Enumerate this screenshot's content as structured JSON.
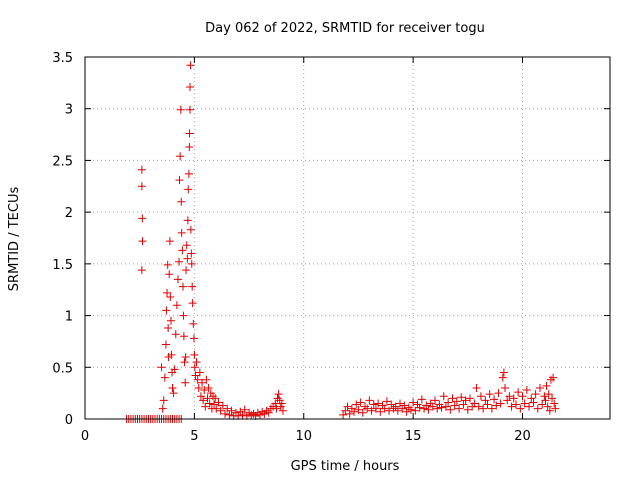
{
  "chart_data": {
    "type": "scatter",
    "title": "Day 062 of 2022, SRMTID for receiver togu",
    "xlabel": "GPS time / hours",
    "ylabel": "SRMTID / TECUs",
    "xlim": [
      0,
      24
    ],
    "ylim": [
      0,
      3.5
    ],
    "xticks": [
      0,
      5,
      10,
      15,
      20
    ],
    "yticks": [
      0,
      0.5,
      1,
      1.5,
      2,
      2.5,
      3,
      3.5
    ],
    "xtick_labels": [
      "0",
      "5",
      "10",
      "15",
      "20"
    ],
    "ytick_labels": [
      "0",
      "0.5",
      "1",
      "1.5",
      "2",
      "2.5",
      "3",
      "3.5"
    ],
    "grid": true,
    "marker": "+",
    "color": "#e00000",
    "series": [
      {
        "name": "togu",
        "points": [
          [
            1.9,
            0
          ],
          [
            2.0,
            0
          ],
          [
            2.1,
            0
          ],
          [
            2.2,
            0
          ],
          [
            2.3,
            0
          ],
          [
            2.4,
            0
          ],
          [
            2.5,
            0
          ],
          [
            2.6,
            0
          ],
          [
            2.7,
            0
          ],
          [
            2.8,
            0
          ],
          [
            2.9,
            0
          ],
          [
            3.0,
            0
          ],
          [
            3.1,
            0
          ],
          [
            3.2,
            0
          ],
          [
            3.3,
            0
          ],
          [
            3.4,
            0
          ],
          [
            3.5,
            0
          ],
          [
            3.6,
            0
          ],
          [
            3.7,
            0
          ],
          [
            3.8,
            0
          ],
          [
            3.9,
            0
          ],
          [
            4.0,
            0
          ],
          [
            4.1,
            0
          ],
          [
            4.2,
            0
          ],
          [
            4.3,
            0
          ],
          [
            4.4,
            0
          ],
          [
            2.6,
            2.41
          ],
          [
            2.6,
            2.25
          ],
          [
            2.62,
            1.94
          ],
          [
            2.63,
            1.72
          ],
          [
            2.6,
            1.44
          ],
          [
            3.5,
            0.5
          ],
          [
            3.55,
            0.1
          ],
          [
            3.6,
            0.18
          ],
          [
            3.65,
            0.4
          ],
          [
            3.7,
            0.72
          ],
          [
            3.72,
            1.05
          ],
          [
            3.75,
            1.22
          ],
          [
            3.78,
            1.49
          ],
          [
            3.8,
            0.88
          ],
          [
            3.82,
            0.6
          ],
          [
            3.85,
            1.4
          ],
          [
            3.88,
            1.72
          ],
          [
            3.9,
            1.18
          ],
          [
            3.93,
            0.95
          ],
          [
            3.95,
            0.62
          ],
          [
            3.98,
            0.45
          ],
          [
            4.0,
            0.3
          ],
          [
            4.05,
            0.25
          ],
          [
            4.1,
            0.48
          ],
          [
            4.15,
            0.82
          ],
          [
            4.2,
            1.1
          ],
          [
            4.25,
            1.35
          ],
          [
            4.3,
            1.52
          ],
          [
            4.32,
            2.31
          ],
          [
            4.35,
            2.54
          ],
          [
            4.38,
            2.99
          ],
          [
            4.4,
            2.1
          ],
          [
            4.42,
            1.8
          ],
          [
            4.45,
            1.63
          ],
          [
            4.48,
            1.28
          ],
          [
            4.5,
            1.0
          ],
          [
            4.52,
            0.8
          ],
          [
            4.55,
            0.55
          ],
          [
            4.58,
            0.35
          ],
          [
            4.6,
            0.6
          ],
          [
            4.62,
            1.44
          ],
          [
            4.65,
            1.68
          ],
          [
            4.68,
            1.55
          ],
          [
            4.7,
            1.92
          ],
          [
            4.72,
            2.22
          ],
          [
            4.75,
            2.37
          ],
          [
            4.77,
            2.63
          ],
          [
            4.78,
            2.76
          ],
          [
            4.8,
            2.99
          ],
          [
            4.8,
            3.21
          ],
          [
            4.82,
            3.42
          ],
          [
            4.84,
            1.83
          ],
          [
            4.86,
            1.6
          ],
          [
            4.88,
            1.5
          ],
          [
            4.9,
            1.28
          ],
          [
            4.92,
            1.12
          ],
          [
            4.95,
            0.92
          ],
          [
            4.98,
            0.78
          ],
          [
            5.0,
            0.62
          ],
          [
            5.02,
            0.5
          ],
          [
            5.05,
            0.42
          ],
          [
            5.1,
            0.55
          ],
          [
            5.15,
            0.38
          ],
          [
            5.2,
            0.3
          ],
          [
            5.25,
            0.45
          ],
          [
            5.3,
            0.22
          ],
          [
            5.35,
            0.35
          ],
          [
            5.4,
            0.18
          ],
          [
            5.45,
            0.28
          ],
          [
            5.5,
            0.12
          ],
          [
            5.55,
            0.38
          ],
          [
            5.6,
            0.2
          ],
          [
            5.65,
            0.3
          ],
          [
            5.7,
            0.15
          ],
          [
            5.75,
            0.25
          ],
          [
            5.8,
            0.1
          ],
          [
            5.85,
            0.22
          ],
          [
            5.9,
            0.14
          ],
          [
            5.95,
            0.2
          ],
          [
            6.0,
            0.1
          ],
          [
            6.1,
            0.16
          ],
          [
            6.2,
            0.08
          ],
          [
            6.3,
            0.13
          ],
          [
            6.4,
            0.05
          ],
          [
            6.5,
            0.1
          ],
          [
            6.6,
            0.04
          ],
          [
            6.7,
            0.08
          ],
          [
            6.8,
            0.03
          ],
          [
            6.9,
            0.06
          ],
          [
            7.0,
            0.03
          ],
          [
            7.1,
            0.07
          ],
          [
            7.2,
            0.04
          ],
          [
            7.3,
            0.09
          ],
          [
            7.4,
            0.03
          ],
          [
            7.5,
            0.06
          ],
          [
            7.6,
            0.04
          ],
          [
            7.7,
            0.05
          ],
          [
            7.8,
            0.03
          ],
          [
            7.9,
            0.06
          ],
          [
            8.0,
            0.04
          ],
          [
            8.1,
            0.07
          ],
          [
            8.2,
            0.05
          ],
          [
            8.3,
            0.08
          ],
          [
            8.4,
            0.06
          ],
          [
            8.5,
            0.1
          ],
          [
            8.6,
            0.12
          ],
          [
            8.7,
            0.15
          ],
          [
            8.75,
            0.1
          ],
          [
            8.8,
            0.2
          ],
          [
            8.85,
            0.24
          ],
          [
            8.9,
            0.18
          ],
          [
            8.95,
            0.12
          ],
          [
            9.0,
            0.15
          ],
          [
            9.05,
            0.08
          ],
          [
            11.8,
            0.04
          ],
          [
            11.9,
            0.08
          ],
          [
            12.0,
            0.12
          ],
          [
            12.1,
            0.05
          ],
          [
            12.2,
            0.1
          ],
          [
            12.3,
            0.07
          ],
          [
            12.4,
            0.14
          ],
          [
            12.5,
            0.09
          ],
          [
            12.6,
            0.16
          ],
          [
            12.7,
            0.06
          ],
          [
            12.8,
            0.12
          ],
          [
            12.9,
            0.1
          ],
          [
            13.0,
            0.18
          ],
          [
            13.1,
            0.08
          ],
          [
            13.2,
            0.14
          ],
          [
            13.3,
            0.1
          ],
          [
            13.4,
            0.15
          ],
          [
            13.5,
            0.07
          ],
          [
            13.6,
            0.13
          ],
          [
            13.7,
            0.1
          ],
          [
            13.8,
            0.17
          ],
          [
            13.9,
            0.08
          ],
          [
            14.0,
            0.14
          ],
          [
            14.1,
            0.1
          ],
          [
            14.2,
            0.12
          ],
          [
            14.3,
            0.08
          ],
          [
            14.4,
            0.15
          ],
          [
            14.5,
            0.1
          ],
          [
            14.6,
            0.13
          ],
          [
            14.7,
            0.07
          ],
          [
            14.8,
            0.11
          ],
          [
            14.9,
            0.09
          ],
          [
            15.0,
            0.16
          ],
          [
            15.1,
            0.08
          ],
          [
            15.2,
            0.14
          ],
          [
            15.3,
            0.11
          ],
          [
            15.4,
            0.19
          ],
          [
            15.5,
            0.1
          ],
          [
            15.6,
            0.13
          ],
          [
            15.7,
            0.09
          ],
          [
            15.8,
            0.15
          ],
          [
            15.9,
            0.12
          ],
          [
            16.0,
            0.18
          ],
          [
            16.1,
            0.1
          ],
          [
            16.2,
            0.14
          ],
          [
            16.3,
            0.11
          ],
          [
            16.4,
            0.22
          ],
          [
            16.5,
            0.12
          ],
          [
            16.6,
            0.16
          ],
          [
            16.7,
            0.09
          ],
          [
            16.8,
            0.2
          ],
          [
            16.9,
            0.13
          ],
          [
            17.0,
            0.17
          ],
          [
            17.1,
            0.1
          ],
          [
            17.2,
            0.21
          ],
          [
            17.3,
            0.14
          ],
          [
            17.4,
            0.18
          ],
          [
            17.5,
            0.09
          ],
          [
            17.6,
            0.2
          ],
          [
            17.7,
            0.12
          ],
          [
            17.8,
            0.15
          ],
          [
            17.9,
            0.3
          ],
          [
            18.0,
            0.12
          ],
          [
            18.1,
            0.22
          ],
          [
            18.2,
            0.1
          ],
          [
            18.3,
            0.18
          ],
          [
            18.4,
            0.14
          ],
          [
            18.5,
            0.24
          ],
          [
            18.6,
            0.1
          ],
          [
            18.7,
            0.19
          ],
          [
            18.8,
            0.13
          ],
          [
            18.9,
            0.25
          ],
          [
            19.0,
            0.15
          ],
          [
            19.1,
            0.4
          ],
          [
            19.15,
            0.45
          ],
          [
            19.2,
            0.3
          ],
          [
            19.3,
            0.18
          ],
          [
            19.4,
            0.22
          ],
          [
            19.5,
            0.12
          ],
          [
            19.6,
            0.2
          ],
          [
            19.7,
            0.14
          ],
          [
            19.8,
            0.26
          ],
          [
            19.9,
            0.1
          ],
          [
            20.0,
            0.22
          ],
          [
            20.1,
            0.15
          ],
          [
            20.2,
            0.28
          ],
          [
            20.3,
            0.12
          ],
          [
            20.4,
            0.2
          ],
          [
            20.5,
            0.16
          ],
          [
            20.6,
            0.24
          ],
          [
            20.7,
            0.1
          ],
          [
            20.8,
            0.3
          ],
          [
            20.9,
            0.14
          ],
          [
            21.0,
            0.22
          ],
          [
            21.05,
            0.18
          ],
          [
            21.1,
            0.32
          ],
          [
            21.15,
            0.12
          ],
          [
            21.2,
            0.24
          ],
          [
            21.25,
            0.08
          ],
          [
            21.3,
            0.38
          ],
          [
            21.35,
            0.2
          ],
          [
            21.4,
            0.4
          ],
          [
            21.45,
            0.15
          ],
          [
            21.5,
            0.1
          ]
        ]
      }
    ]
  }
}
